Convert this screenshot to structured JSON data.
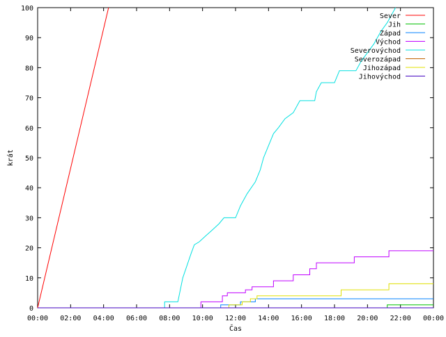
{
  "chart_data": {
    "type": "line",
    "title": "",
    "xlabel": "Čas",
    "ylabel": "krát",
    "xlim": [
      0,
      24
    ],
    "ylim": [
      0,
      100
    ],
    "x_unit": "hours",
    "x_ticks": [
      0,
      2,
      4,
      6,
      8,
      10,
      12,
      14,
      16,
      18,
      20,
      22,
      24
    ],
    "x_tick_labels": [
      "00:00",
      "02:00",
      "04:00",
      "06:00",
      "08:00",
      "10:00",
      "12:00",
      "14:00",
      "16:00",
      "18:00",
      "20:00",
      "22:00",
      "00:00"
    ],
    "y_ticks": [
      0,
      10,
      20,
      30,
      40,
      50,
      60,
      70,
      80,
      90,
      100
    ],
    "y_tick_labels": [
      "0",
      "10",
      "20",
      "30",
      "40",
      "50",
      "60",
      "70",
      "80",
      "90",
      "100"
    ],
    "grid": false,
    "legend_position": "top-right",
    "series": [
      {
        "name": "Sever",
        "color": "#ff0000",
        "line": "linear",
        "points": [
          [
            0,
            0
          ],
          [
            4.3,
            100
          ]
        ]
      },
      {
        "name": "Jih",
        "color": "#00c000",
        "line": "step",
        "points": [
          [
            0,
            0
          ],
          [
            21.2,
            0
          ],
          [
            21.2,
            1
          ],
          [
            24,
            1
          ]
        ]
      },
      {
        "name": "Západ",
        "color": "#0080ff",
        "line": "step",
        "points": [
          [
            0,
            0
          ],
          [
            11.1,
            0
          ],
          [
            11.1,
            1
          ],
          [
            12.3,
            1
          ],
          [
            12.3,
            2
          ],
          [
            13.2,
            2
          ],
          [
            13.2,
            3
          ],
          [
            24,
            3
          ]
        ]
      },
      {
        "name": "Východ",
        "color": "#c000ff",
        "line": "step",
        "points": [
          [
            0,
            0
          ],
          [
            9.9,
            0
          ],
          [
            9.9,
            2
          ],
          [
            11.2,
            2
          ],
          [
            11.2,
            4
          ],
          [
            11.5,
            4
          ],
          [
            11.5,
            5
          ],
          [
            12.6,
            5
          ],
          [
            12.6,
            6
          ],
          [
            13,
            6
          ],
          [
            13,
            7
          ],
          [
            14.3,
            7
          ],
          [
            14.3,
            9
          ],
          [
            15.5,
            9
          ],
          [
            15.5,
            11
          ],
          [
            16.5,
            11
          ],
          [
            16.5,
            13
          ],
          [
            16.9,
            13
          ],
          [
            16.9,
            15
          ],
          [
            19.2,
            15
          ],
          [
            19.2,
            17
          ],
          [
            21.3,
            17
          ],
          [
            21.3,
            19
          ],
          [
            24,
            19
          ]
        ]
      },
      {
        "name": "Severovýchod",
        "color": "#00e0e0",
        "line": "step",
        "points": [
          [
            0,
            0
          ],
          [
            7.7,
            0
          ],
          [
            7.7,
            2
          ],
          [
            8.5,
            2
          ],
          [
            8.8,
            10
          ],
          [
            9.3,
            18
          ],
          [
            9.5,
            21
          ],
          [
            9.8,
            22
          ],
          [
            10.2,
            24
          ],
          [
            10.6,
            26
          ],
          [
            11,
            28
          ],
          [
            11.3,
            30
          ],
          [
            12,
            30
          ],
          [
            12.3,
            34
          ],
          [
            12.7,
            38
          ],
          [
            13.2,
            42
          ],
          [
            13.5,
            46
          ],
          [
            13.7,
            50
          ],
          [
            14,
            54
          ],
          [
            14.3,
            58
          ],
          [
            14.6,
            60
          ],
          [
            15,
            63
          ],
          [
            15.5,
            65
          ],
          [
            15.9,
            69
          ],
          [
            16.8,
            69
          ],
          [
            16.9,
            72
          ],
          [
            17.2,
            75
          ],
          [
            18,
            75
          ],
          [
            18.3,
            79
          ],
          [
            19.3,
            79
          ],
          [
            19.6,
            82
          ],
          [
            20,
            85
          ],
          [
            20.4,
            88
          ],
          [
            20.8,
            92
          ],
          [
            21.2,
            95
          ],
          [
            21.7,
            100
          ]
        ]
      },
      {
        "name": "Severozápad",
        "color": "#c06000",
        "line": "step",
        "points": [
          [
            0,
            0
          ],
          [
            24,
            0
          ]
        ]
      },
      {
        "name": "Jihozápad",
        "color": "#e0e000",
        "line": "step",
        "points": [
          [
            0,
            0
          ],
          [
            11.6,
            0
          ],
          [
            11.6,
            1
          ],
          [
            12.4,
            1
          ],
          [
            12.4,
            2
          ],
          [
            12.9,
            2
          ],
          [
            12.9,
            3
          ],
          [
            13.3,
            3
          ],
          [
            13.3,
            4
          ],
          [
            18.4,
            4
          ],
          [
            18.4,
            6
          ],
          [
            21.3,
            6
          ],
          [
            21.3,
            8
          ],
          [
            24,
            8
          ]
        ]
      },
      {
        "name": "Jihovýchod",
        "color": "#4000c0",
        "line": "step",
        "points": [
          [
            0,
            0
          ],
          [
            24,
            0
          ]
        ]
      }
    ]
  }
}
